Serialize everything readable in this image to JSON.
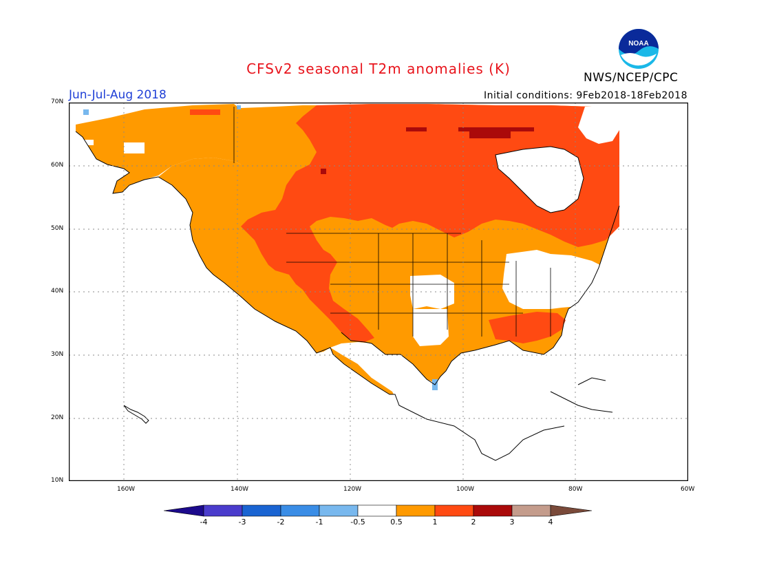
{
  "header": {
    "title": "CFSv2 seasonal T2m anomalies (K)",
    "period": "Jun-Jul-Aug 2018",
    "initial_conditions": "Initial conditions: 9Feb2018-18Feb2018",
    "agency": "NWS/NCEP/CPC",
    "logo_text": "NOAA"
  },
  "map": {
    "region": "North America",
    "lon_range": [
      -170,
      -60
    ],
    "lat_range": [
      10,
      70
    ],
    "grid": "dotted",
    "lat_labels": [
      "70N",
      "60N",
      "50N",
      "40N",
      "30N",
      "20N",
      "10N"
    ],
    "lon_labels": [
      "160W",
      "140W",
      "120W",
      "100W",
      "80W",
      "60W"
    ]
  },
  "colorbar": {
    "tick_labels": [
      "-4",
      "-3",
      "-2",
      "-1",
      "-0.5",
      "0.5",
      "1",
      "2",
      "3",
      "4"
    ],
    "colors": [
      "#1c0a8c",
      "#4a3ccc",
      "#1a64d2",
      "#3a8de6",
      "#78b8ee",
      "#ffffff",
      "#ff9a00",
      "#ff4a12",
      "#aa0a0a",
      "#c49c8c",
      "#7a4a3a"
    ]
  },
  "anomaly_colors": {
    "weak_warm": "#ff9a00",
    "warm": "#ff4a12",
    "strong_warm": "#aa0a0a",
    "weak_cool": "#78b8ee"
  }
}
